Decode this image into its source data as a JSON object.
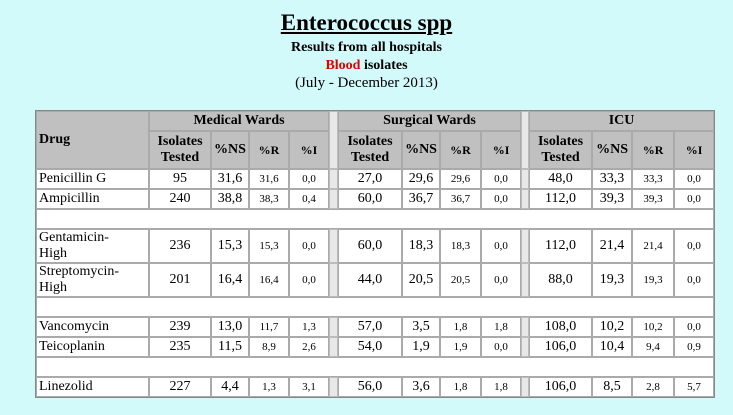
{
  "header": {
    "title": "Enterococcus spp",
    "subtitle": "Results from all hospitals",
    "specimen_highlight": "Blood",
    "specimen_rest": "isolates",
    "period": "(July - December 2013)"
  },
  "table": {
    "drug_header": "Drug",
    "groups": [
      "Medical Wards",
      "Surgical Wards",
      "ICU"
    ],
    "columns": [
      "Isolates Tested",
      "%NS",
      "%R",
      "%I"
    ],
    "sections": [
      [
        [
          "Penicillin G",
          "95",
          "31,6",
          "31,6",
          "0,0",
          "27,0",
          "29,6",
          "29,6",
          "0,0",
          "48,0",
          "33,3",
          "33,3",
          "0,0"
        ],
        [
          "Ampicillin",
          "240",
          "38,8",
          "38,3",
          "0,4",
          "60,0",
          "36,7",
          "36,7",
          "0,0",
          "112,0",
          "39,3",
          "39,3",
          "0,0"
        ]
      ],
      [
        [
          "Gentamicin-High",
          "236",
          "15,3",
          "15,3",
          "0,0",
          "60,0",
          "18,3",
          "18,3",
          "0,0",
          "112,0",
          "21,4",
          "21,4",
          "0,0"
        ],
        [
          "Streptomycin-High",
          "201",
          "16,4",
          "16,4",
          "0,0",
          "44,0",
          "20,5",
          "20,5",
          "0,0",
          "88,0",
          "19,3",
          "19,3",
          "0,0"
        ]
      ],
      [
        [
          "Vancomycin",
          "239",
          "13,0",
          "11,7",
          "1,3",
          "57,0",
          "3,5",
          "1,8",
          "1,8",
          "108,0",
          "10,2",
          "10,2",
          "0,0"
        ],
        [
          "Teicoplanin",
          "235",
          "11,5",
          "8,9",
          "2,6",
          "54,0",
          "1,9",
          "1,9",
          "0,0",
          "106,0",
          "10,4",
          "9,4",
          "0,9"
        ]
      ],
      [
        [
          "Linezolid",
          "227",
          "4,4",
          "1,3",
          "3,1",
          "56,0",
          "3,6",
          "1,8",
          "1,8",
          "106,0",
          "8,5",
          "2,8",
          "5,7"
        ]
      ]
    ]
  }
}
